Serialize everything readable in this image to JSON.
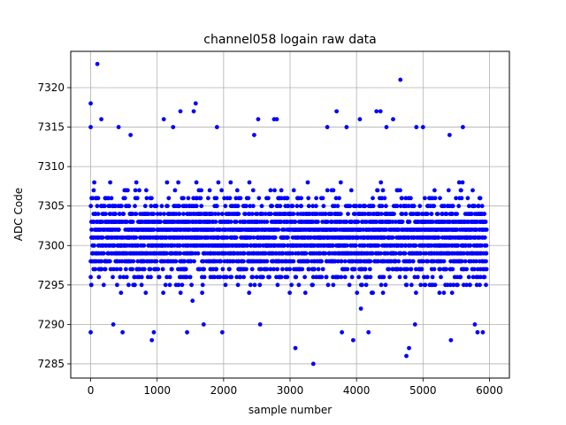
{
  "chart_data": {
    "type": "scatter",
    "title": "channel058 logain raw data",
    "xlabel": "sample number",
    "ylabel": "ADC Code",
    "xlim": [
      -300,
      6300
    ],
    "ylim": [
      7283.2,
      7324.6
    ],
    "xticks": [
      0,
      1000,
      2000,
      3000,
      4000,
      5000,
      6000
    ],
    "yticks": [
      7285,
      7290,
      7295,
      7300,
      7305,
      7310,
      7315,
      7320
    ],
    "grid": true,
    "legend": "none",
    "marker_color": "#0000ff",
    "series": [
      {
        "x_range": [
          0,
          5940
        ],
        "y_core_range": [
          7293,
          7309
        ],
        "points": [
          [
            0,
            7318
          ],
          [
            0,
            7315
          ],
          [
            0,
            7289
          ],
          [
            100,
            7323
          ],
          [
            160,
            7316
          ],
          [
            340,
            7290
          ],
          [
            420,
            7315
          ],
          [
            480,
            7289
          ],
          [
            1100,
            7316
          ],
          [
            1350,
            7317
          ],
          [
            1450,
            7289
          ],
          [
            1550,
            7317
          ],
          [
            1580,
            7318
          ],
          [
            1700,
            7290
          ],
          [
            1900,
            7315
          ],
          [
            1980,
            7289
          ],
          [
            2520,
            7316
          ],
          [
            2760,
            7316
          ],
          [
            2800,
            7316
          ],
          [
            2550,
            7290
          ],
          [
            3080,
            7287
          ],
          [
            3350,
            7285
          ],
          [
            3700,
            7317
          ],
          [
            3850,
            7315
          ],
          [
            3950,
            7288
          ],
          [
            4300,
            7317
          ],
          [
            4360,
            7317
          ],
          [
            4550,
            7316
          ],
          [
            4660,
            7321
          ],
          [
            4750,
            7286
          ],
          [
            4790,
            7287
          ],
          [
            5000,
            7315
          ],
          [
            5420,
            7288
          ],
          [
            5600,
            7315
          ],
          [
            5780,
            7290
          ],
          [
            5820,
            7289
          ],
          [
            5900,
            7289
          ],
          [
            920,
            7288
          ],
          [
            950,
            7289
          ],
          [
            4180,
            7289
          ],
          [
            3780,
            7289
          ],
          [
            1240,
            7315
          ],
          [
            4050,
            7316
          ],
          [
            4900,
            7315
          ],
          [
            600,
            7314
          ],
          [
            2460,
            7314
          ],
          [
            3560,
            7315
          ],
          [
            4450,
            7315
          ],
          [
            4880,
            7290
          ],
          [
            5400,
            7314
          ]
        ]
      }
    ]
  }
}
